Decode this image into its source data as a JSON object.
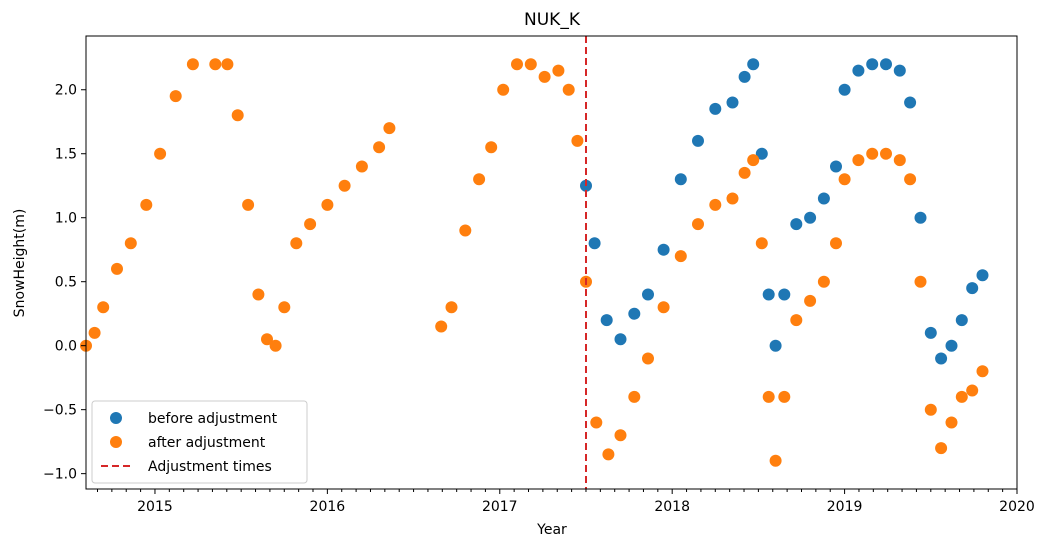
{
  "chart_data": {
    "type": "scatter",
    "title": "NUK_K",
    "xlabel": "Year",
    "ylabel": "SnowHeight(m)",
    "xlim": [
      2014.6,
      2020.0
    ],
    "ylim": [
      -1.12,
      2.42
    ],
    "x_ticks": [
      {
        "value": 2015,
        "label": "2015"
      },
      {
        "value": 2016,
        "label": "2016"
      },
      {
        "value": 2017,
        "label": "2017"
      },
      {
        "value": 2018,
        "label": "2018"
      },
      {
        "value": 2019,
        "label": "2019"
      },
      {
        "value": 2020,
        "label": "2020"
      }
    ],
    "y_ticks": [
      {
        "value": -1.0,
        "label": "−1.0"
      },
      {
        "value": -0.5,
        "label": "−0.5"
      },
      {
        "value": 0.0,
        "label": "0.0"
      },
      {
        "value": 0.5,
        "label": "0.5"
      },
      {
        "value": 1.0,
        "label": "1.0"
      },
      {
        "value": 1.5,
        "label": "1.5"
      },
      {
        "value": 2.0,
        "label": "2.0"
      }
    ],
    "grid": false,
    "legend_position": "lower-left",
    "series": [
      {
        "name": "before adjustment",
        "color": "#1f77b4",
        "marker": "circle",
        "x": [
          2017.5,
          2017.55,
          2017.62,
          2017.7,
          2017.78,
          2017.86,
          2017.95,
          2018.05,
          2018.15,
          2018.25,
          2018.35,
          2018.42,
          2018.47,
          2018.52,
          2018.56,
          2018.6,
          2018.65,
          2018.72,
          2018.8,
          2018.88,
          2018.95,
          2019.0,
          2019.08,
          2019.16,
          2019.24,
          2019.32,
          2019.38,
          2019.44,
          2019.5,
          2019.56,
          2019.62,
          2019.68,
          2019.74,
          2019.8
        ],
        "y": [
          1.25,
          0.8,
          0.2,
          0.05,
          0.25,
          0.4,
          0.75,
          1.3,
          1.6,
          1.85,
          1.9,
          2.1,
          2.2,
          1.5,
          0.4,
          0.0,
          0.4,
          0.95,
          1.0,
          1.15,
          1.4,
          2.0,
          2.15,
          2.2,
          2.2,
          2.15,
          1.9,
          1.0,
          0.1,
          -0.1,
          0.0,
          0.2,
          0.45,
          0.55
        ]
      },
      {
        "name": "after adjustment",
        "color": "#ff7f0e",
        "marker": "circle",
        "x": [
          2014.6,
          2014.65,
          2014.7,
          2014.78,
          2014.86,
          2014.95,
          2015.03,
          2015.12,
          2015.22,
          2015.35,
          2015.42,
          2015.48,
          2015.54,
          2015.6,
          2015.65,
          2015.7,
          2015.75,
          2015.82,
          2015.9,
          2016.0,
          2016.1,
          2016.2,
          2016.3,
          2016.36,
          2016.66,
          2016.72,
          2016.8,
          2016.88,
          2016.95,
          2017.02,
          2017.1,
          2017.18,
          2017.26,
          2017.34,
          2017.4,
          2017.45,
          2017.5,
          2017.56,
          2017.63,
          2017.7,
          2017.78,
          2017.86,
          2017.95,
          2018.05,
          2018.15,
          2018.25,
          2018.35,
          2018.42,
          2018.47,
          2018.52,
          2018.56,
          2018.6,
          2018.65,
          2018.72,
          2018.8,
          2018.88,
          2018.95,
          2019.0,
          2019.08,
          2019.16,
          2019.24,
          2019.32,
          2019.38,
          2019.44,
          2019.5,
          2019.56,
          2019.62,
          2019.68,
          2019.74,
          2019.8
        ],
        "y": [
          0.0,
          0.1,
          0.3,
          0.6,
          0.8,
          1.1,
          1.5,
          1.95,
          2.2,
          2.2,
          2.2,
          1.8,
          1.1,
          0.4,
          0.05,
          0.0,
          0.3,
          0.8,
          0.95,
          1.1,
          1.25,
          1.4,
          1.55,
          1.7,
          0.15,
          0.3,
          0.9,
          1.3,
          1.55,
          2.0,
          2.2,
          2.2,
          2.1,
          2.15,
          2.0,
          1.6,
          0.5,
          -0.6,
          -0.85,
          -0.7,
          -0.4,
          -0.1,
          0.3,
          0.7,
          0.95,
          1.1,
          1.15,
          1.35,
          1.45,
          0.8,
          -0.4,
          -0.9,
          -0.4,
          0.2,
          0.35,
          0.5,
          0.8,
          1.3,
          1.45,
          1.5,
          1.5,
          1.45,
          1.3,
          0.5,
          -0.5,
          -0.8,
          -0.6,
          -0.4,
          -0.35,
          -0.2
        ]
      }
    ],
    "adjustment_times": {
      "name": "Adjustment times",
      "color": "#d62728",
      "style": "dashed",
      "x": [
        2017.5
      ]
    }
  }
}
